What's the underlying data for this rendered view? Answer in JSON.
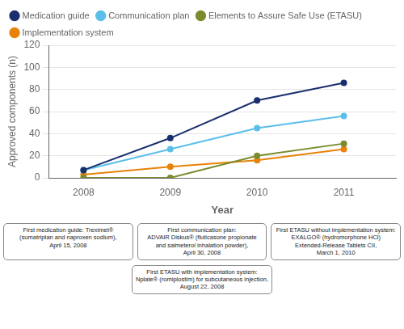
{
  "chart_data": {
    "type": "line",
    "x": [
      2008,
      2009,
      2010,
      2011
    ],
    "series": [
      {
        "name": "Medication guide",
        "color": "#1a2f6e",
        "values": [
          7,
          36,
          70,
          86
        ],
        "marker": "circle"
      },
      {
        "name": "Communication plan",
        "color": "#5bbfea",
        "values": [
          7,
          26,
          45,
          56
        ],
        "marker": "circle"
      },
      {
        "name": "Elements to Assure Safe Use (ETASU)",
        "color": "#7a8c2e",
        "values": [
          0,
          0,
          20,
          31
        ],
        "marker": "circle"
      },
      {
        "name": "Implementation system",
        "color": "#e8820a",
        "values": [
          3,
          10,
          16,
          26
        ],
        "marker": "circle"
      }
    ],
    "x_label": "Year",
    "y_label": "Approved components (n)",
    "xlim": [
      2007.6,
      2011.6
    ],
    "xticks": [
      2008,
      2009,
      2010,
      2011
    ],
    "ylim": [
      0,
      120
    ],
    "yticks": [
      0,
      20,
      40,
      60,
      80,
      100,
      120
    ],
    "grid": "y",
    "legend": "upper left",
    "annotations": [
      "First medication guide: Treximet®\n(sumatriptan and naproxen sodium),\nApril 15, 2008",
      "First communication plan:\nADVAIR Diskus® (fluticasone propionate\nand salmeterol inhalation powder),\nApril 30, 2008",
      "First ETASU without implementation system:\nEXALGO® (hydromorphone HCl)\nExtended-Release Tablets CII,\nMarch 1, 2010",
      "First ETASU with implementation system:\nNplate® (romiplostim) for subcutaneous injection,\nAugust 22, 2008"
    ]
  }
}
